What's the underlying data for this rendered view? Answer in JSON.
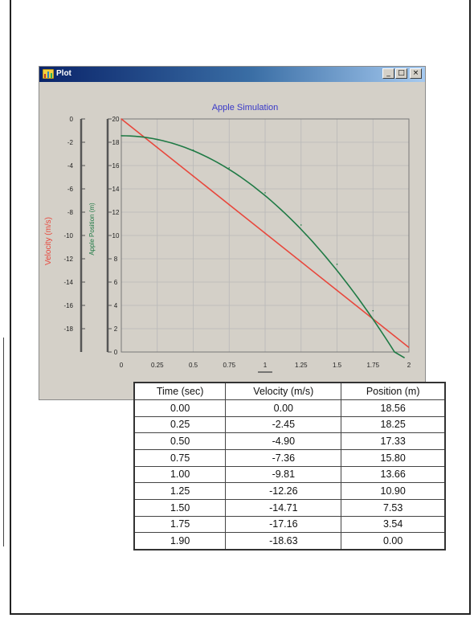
{
  "window": {
    "title": "Plot",
    "buttons": {
      "minimize": "_",
      "maximize": "□",
      "close": "×"
    }
  },
  "colors": {
    "velocity": "#e8473c",
    "position": "#1f7a45",
    "title": "#3838c8",
    "titlebar_start": "#0a246a",
    "titlebar_end": "#a6caf0"
  },
  "chart_data": {
    "type": "line",
    "title": "Apple Simulation",
    "xlabel": "",
    "ylabel_left": "Velocity (m/s)",
    "ylabel_right": "Apple Position (m)",
    "x_ticks": [
      "0",
      "0.25",
      "0.5",
      "0.75",
      "1",
      "1.25",
      "1.5",
      "1.75",
      "2"
    ],
    "xlim": [
      0,
      2
    ],
    "y_velocity_ticks": [
      "0",
      "-2",
      "-4",
      "-6",
      "-8",
      "-10",
      "-12",
      "-14",
      "-16",
      "-18"
    ],
    "y_velocity_lim": [
      -20,
      0
    ],
    "y_position_ticks": [
      "20",
      "18",
      "16",
      "14",
      "12",
      "10",
      "8",
      "6",
      "4",
      "2",
      "0"
    ],
    "y_position_lim": [
      0,
      20
    ],
    "grid": true,
    "series": [
      {
        "name": "Velocity (m/s)",
        "axis": "velocity",
        "color": "#e8473c",
        "x": [
          0,
          0.25,
          0.5,
          0.75,
          1.0,
          1.25,
          1.5,
          1.75,
          1.9
        ],
        "y": [
          0.0,
          -2.45,
          -4.9,
          -7.36,
          -9.81,
          -12.26,
          -14.71,
          -17.16,
          -18.63
        ]
      },
      {
        "name": "Position (m)",
        "axis": "position",
        "color": "#1f7a45",
        "x": [
          0,
          0.25,
          0.5,
          0.75,
          1.0,
          1.25,
          1.5,
          1.75,
          1.9
        ],
        "y": [
          18.56,
          18.25,
          17.33,
          15.8,
          13.66,
          10.9,
          7.53,
          3.54,
          0.0
        ]
      }
    ]
  },
  "table": {
    "headers": [
      "Time (sec)",
      "Velocity (m/s)",
      "Position (m)"
    ],
    "rows": [
      [
        "0.00",
        "0.00",
        "18.56"
      ],
      [
        "0.25",
        "-2.45",
        "18.25"
      ],
      [
        "0.50",
        "-4.90",
        "17.33"
      ],
      [
        "0.75",
        "-7.36",
        "15.80"
      ],
      [
        "1.00",
        "-9.81",
        "13.66"
      ],
      [
        "1.25",
        "-12.26",
        "10.90"
      ],
      [
        "1.50",
        "-14.71",
        "7.53"
      ],
      [
        "1.75",
        "-17.16",
        "3.54"
      ],
      [
        "1.90",
        "-18.63",
        "0.00"
      ]
    ]
  }
}
